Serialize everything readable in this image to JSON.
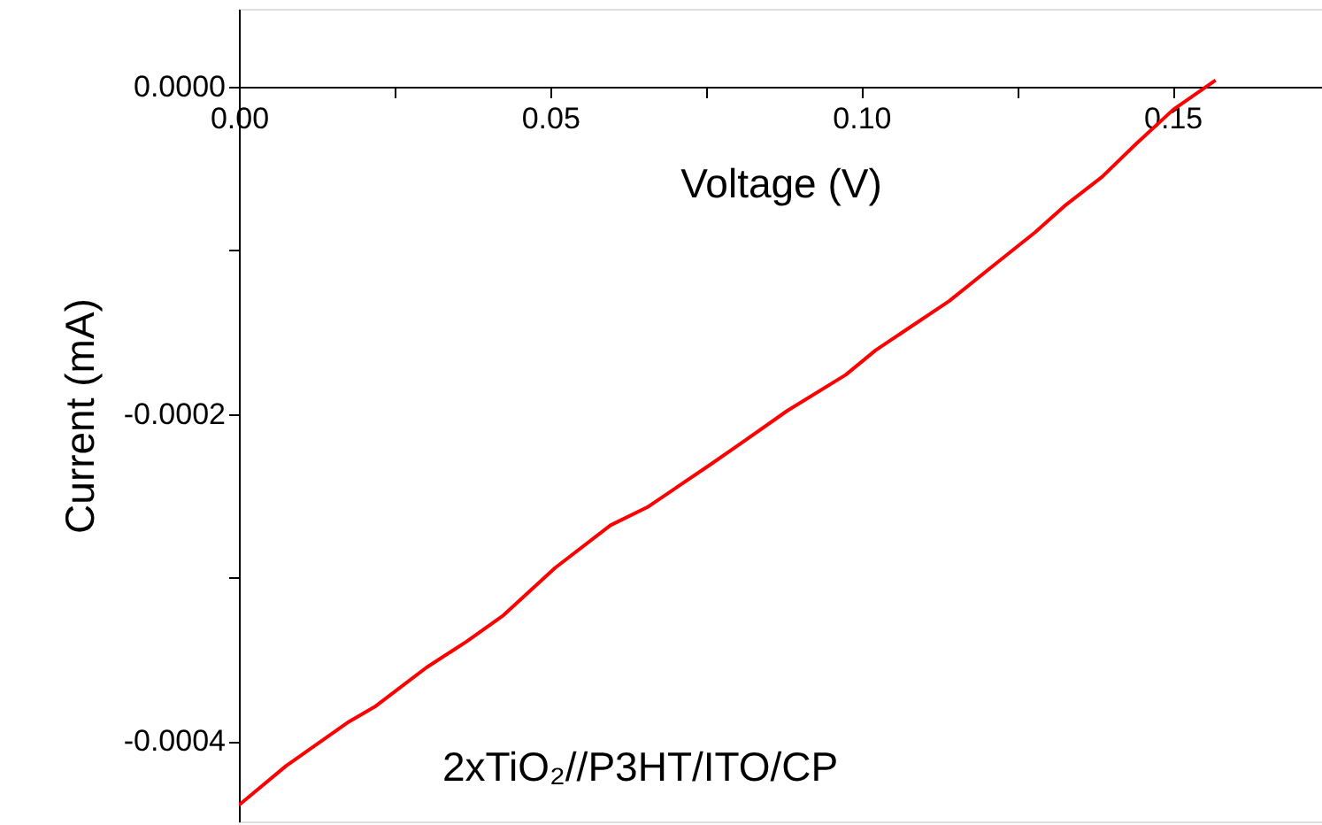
{
  "chart_data": {
    "type": "line",
    "xlabel": "Voltage (V)",
    "ylabel": "Current (mA)",
    "annotations": [
      "2xTiO₂//P3HT/ITO/CP"
    ],
    "xlim": [
      0,
      0.174
    ],
    "ylim": [
      -0.000449,
      4.76e-05
    ],
    "xticks": [
      {
        "value": 0,
        "label": "0.00"
      },
      {
        "value": 0.025,
        "label": null
      },
      0.05,
      {
        "value": 0.075,
        "label": null
      },
      {
        "value": 0.1,
        "label": "0.10"
      },
      {
        "value": 0.125,
        "label": null
      },
      0.15
    ],
    "yticks": [
      {
        "value": 0,
        "label": "0.0000"
      },
      {
        "value": -0.0001,
        "label": null
      },
      -0.0002,
      {
        "value": -0.0003,
        "label": null
      },
      -0.0004
    ],
    "grid": false,
    "marker": "none",
    "line_style": "solid",
    "x": [
      0.0,
      0.0076,
      0.0177,
      0.0218,
      0.0301,
      0.0366,
      0.0425,
      0.0508,
      0.0597,
      0.0656,
      0.0757,
      0.081,
      0.0881,
      0.0975,
      0.1023,
      0.1141,
      0.1213,
      0.1279,
      0.1326,
      0.1387,
      0.1441,
      0.1501,
      0.1569
    ],
    "series": [
      {
        "color": "#ff0000",
        "values": [
          -0.000439,
          -0.000415,
          -0.000388,
          -0.000379,
          -0.000355,
          -0.000339,
          -0.000323,
          -0.000294,
          -0.000268,
          -0.000257,
          -0.000231,
          -0.000217,
          -0.000198,
          -0.000176,
          -0.000161,
          -0.000131,
          -0.000109,
          -8.9e-05,
          -7.3e-05,
          -5.5e-05,
          -3.5e-05,
          -1.4e-05,
          4e-06
        ]
      }
    ]
  }
}
